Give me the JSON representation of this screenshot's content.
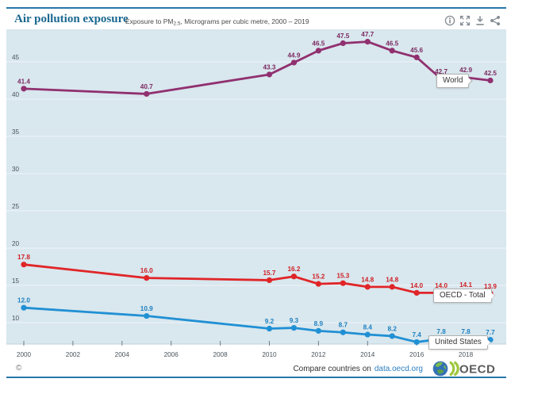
{
  "header": {
    "title": "Air pollution exposure",
    "subtitle_prefix": "Exposure to PM",
    "subtitle_sub": "2.5",
    "subtitle_rest": ", Micrograms per cubic metre, 2000 – 2019",
    "icons": [
      "info-icon",
      "fullscreen-icon",
      "download-icon",
      "share-icon"
    ]
  },
  "chart_data": {
    "type": "line",
    "title": "Air pollution exposure",
    "subtitle": "Exposure to PM2.5, Micrograms per cubic metre, 2000 – 2019",
    "x": [
      2000,
      2005,
      2010,
      2011,
      2012,
      2013,
      2014,
      2015,
      2016,
      2017,
      2018,
      2019
    ],
    "series": [
      {
        "name": "World",
        "color": "#90306f",
        "label_color": "#7c2a62",
        "values": [
          41.4,
          40.7,
          43.3,
          44.9,
          46.5,
          47.5,
          47.7,
          46.5,
          45.6,
          42.7,
          42.9,
          42.5
        ]
      },
      {
        "name": "OECD - Total",
        "color": "#e02528",
        "label_color": "#cf1f24",
        "values": [
          17.8,
          16.0,
          15.7,
          16.2,
          15.2,
          15.3,
          14.8,
          14.8,
          14.0,
          14.0,
          14.1,
          13.9
        ]
      },
      {
        "name": "United States",
        "color": "#2090d4",
        "label_color": "#1b80c0",
        "values": [
          12.0,
          10.9,
          9.2,
          9.3,
          8.9,
          8.7,
          8.4,
          8.2,
          7.4,
          7.8,
          7.8,
          7.7
        ]
      }
    ],
    "y_ticks": [
      10,
      15,
      20,
      25,
      30,
      35,
      40,
      45
    ],
    "x_tick_labels": [
      "2000",
      "2002",
      "2004",
      "2006",
      "2008",
      "2010",
      "2012",
      "2014",
      "2016",
      "2018"
    ],
    "ylim": [
      7,
      49
    ],
    "xlim": [
      1999.5,
      2019.6
    ],
    "grid": "horizontal",
    "legend_position": "end-of-line label boxes"
  },
  "footer": {
    "copyright": "©",
    "compare_text": "Compare countries on",
    "compare_link": "data.oecd.org",
    "logo_text": "OECD"
  },
  "colors": {
    "accent_border": "#2878aa",
    "title": "#1a6890",
    "plot_bg": "#d9e7ee",
    "gridline": "#eef4f8",
    "axis_line": "#c2d2dc",
    "tick_mark": "#6e7e88",
    "tick_text": "#4a545c",
    "link": "#2e7fc0",
    "icon": "#848c93",
    "logo_globe": "#3472b5",
    "logo_green": "#9ec73d",
    "logo_text": "#5a5b5d"
  }
}
